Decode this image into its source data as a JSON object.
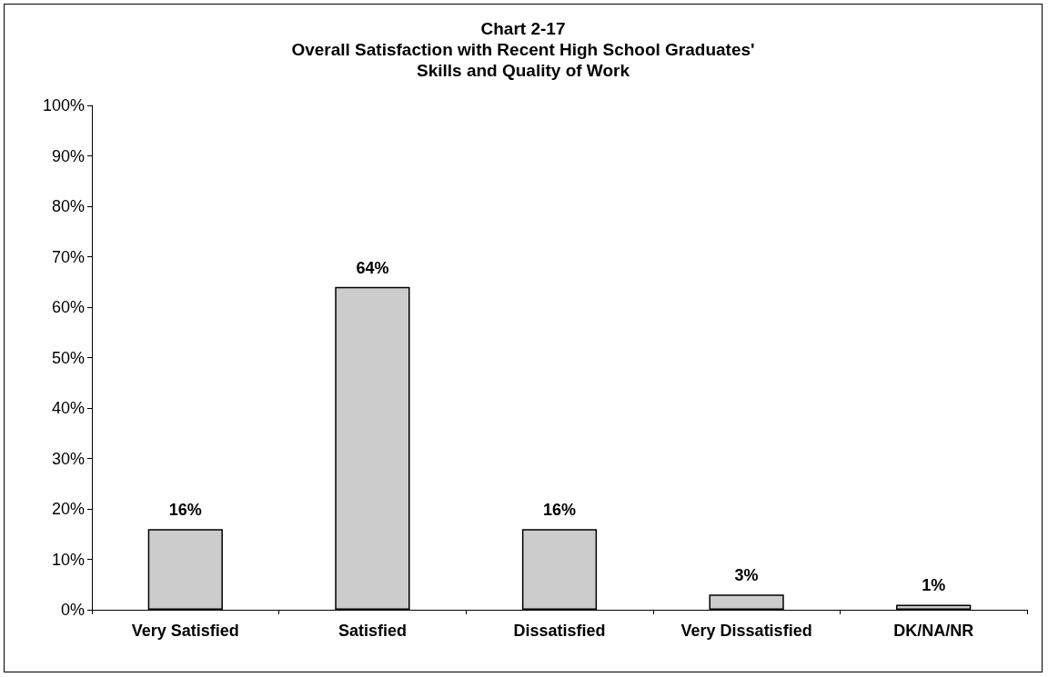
{
  "chart_data": {
    "type": "bar",
    "title": "Chart 2-17\nOverall Satisfaction with Recent High School Graduates'\nSkills and Quality of Work",
    "categories": [
      "Very Satisfied",
      "Satisfied",
      "Dissatisfied",
      "Very Dissatisfied",
      "DK/NA/NR"
    ],
    "values": [
      16,
      64,
      16,
      3,
      1
    ],
    "color": "#cccccc",
    "value_labels": [
      "16%",
      "64%",
      "16%",
      "3%",
      "1%"
    ],
    "ylim": [
      0,
      100
    ],
    "yticks": [
      {
        "value": 0,
        "label": "0%"
      },
      {
        "value": 10,
        "label": "10%"
      },
      {
        "value": 20,
        "label": "20%"
      },
      {
        "value": 30,
        "label": "30%"
      },
      {
        "value": 40,
        "label": "40%"
      },
      {
        "value": 50,
        "label": "50%"
      },
      {
        "value": 60,
        "label": "60%"
      },
      {
        "value": 70,
        "label": "70%"
      },
      {
        "value": 80,
        "label": "80%"
      },
      {
        "value": 90,
        "label": "90%"
      },
      {
        "value": 100,
        "label": "100%"
      }
    ],
    "grid": false
  }
}
